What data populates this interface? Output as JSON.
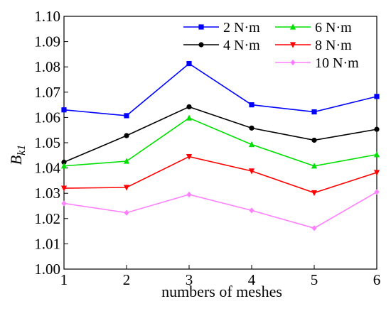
{
  "chart_data": {
    "type": "line",
    "x": [
      1,
      2,
      3,
      4,
      5,
      6
    ],
    "xlabel": "numbers of meshes",
    "ylabel_main": "B",
    "ylabel_sub": "k1",
    "xlim": [
      1,
      6
    ],
    "ylim": [
      1.0,
      1.1
    ],
    "xticks": [
      "1",
      "2",
      "3",
      "4",
      "5",
      "6"
    ],
    "yticks": [
      "1.00",
      "1.01",
      "1.02",
      "1.03",
      "1.04",
      "1.05",
      "1.06",
      "1.07",
      "1.08",
      "1.09",
      "1.10"
    ],
    "grid": false,
    "legend_position": "top-right",
    "series": [
      {
        "name": "2 N·m",
        "color": "#0000ff",
        "marker": "square",
        "values": [
          1.063,
          1.0607,
          1.0813,
          1.065,
          1.0622,
          1.0683
        ]
      },
      {
        "name": "4 N·m",
        "color": "#000000",
        "marker": "circle",
        "values": [
          1.0423,
          1.0528,
          1.0642,
          1.0558,
          1.051,
          1.0553
        ]
      },
      {
        "name": "6 N·m",
        "color": "#00e000",
        "marker": "triangle-up",
        "values": [
          1.0408,
          1.0427,
          1.0598,
          1.0493,
          1.0408,
          1.0453
        ]
      },
      {
        "name": "8 N·m",
        "color": "#ff0000",
        "marker": "triangle-down",
        "values": [
          1.032,
          1.0323,
          1.0445,
          1.0388,
          1.0302,
          1.0382
        ]
      },
      {
        "name": "10 N·m",
        "color": "#ff80ff",
        "marker": "diamond",
        "values": [
          1.026,
          1.0223,
          1.0295,
          1.0232,
          1.0162,
          1.0305
        ]
      }
    ]
  }
}
